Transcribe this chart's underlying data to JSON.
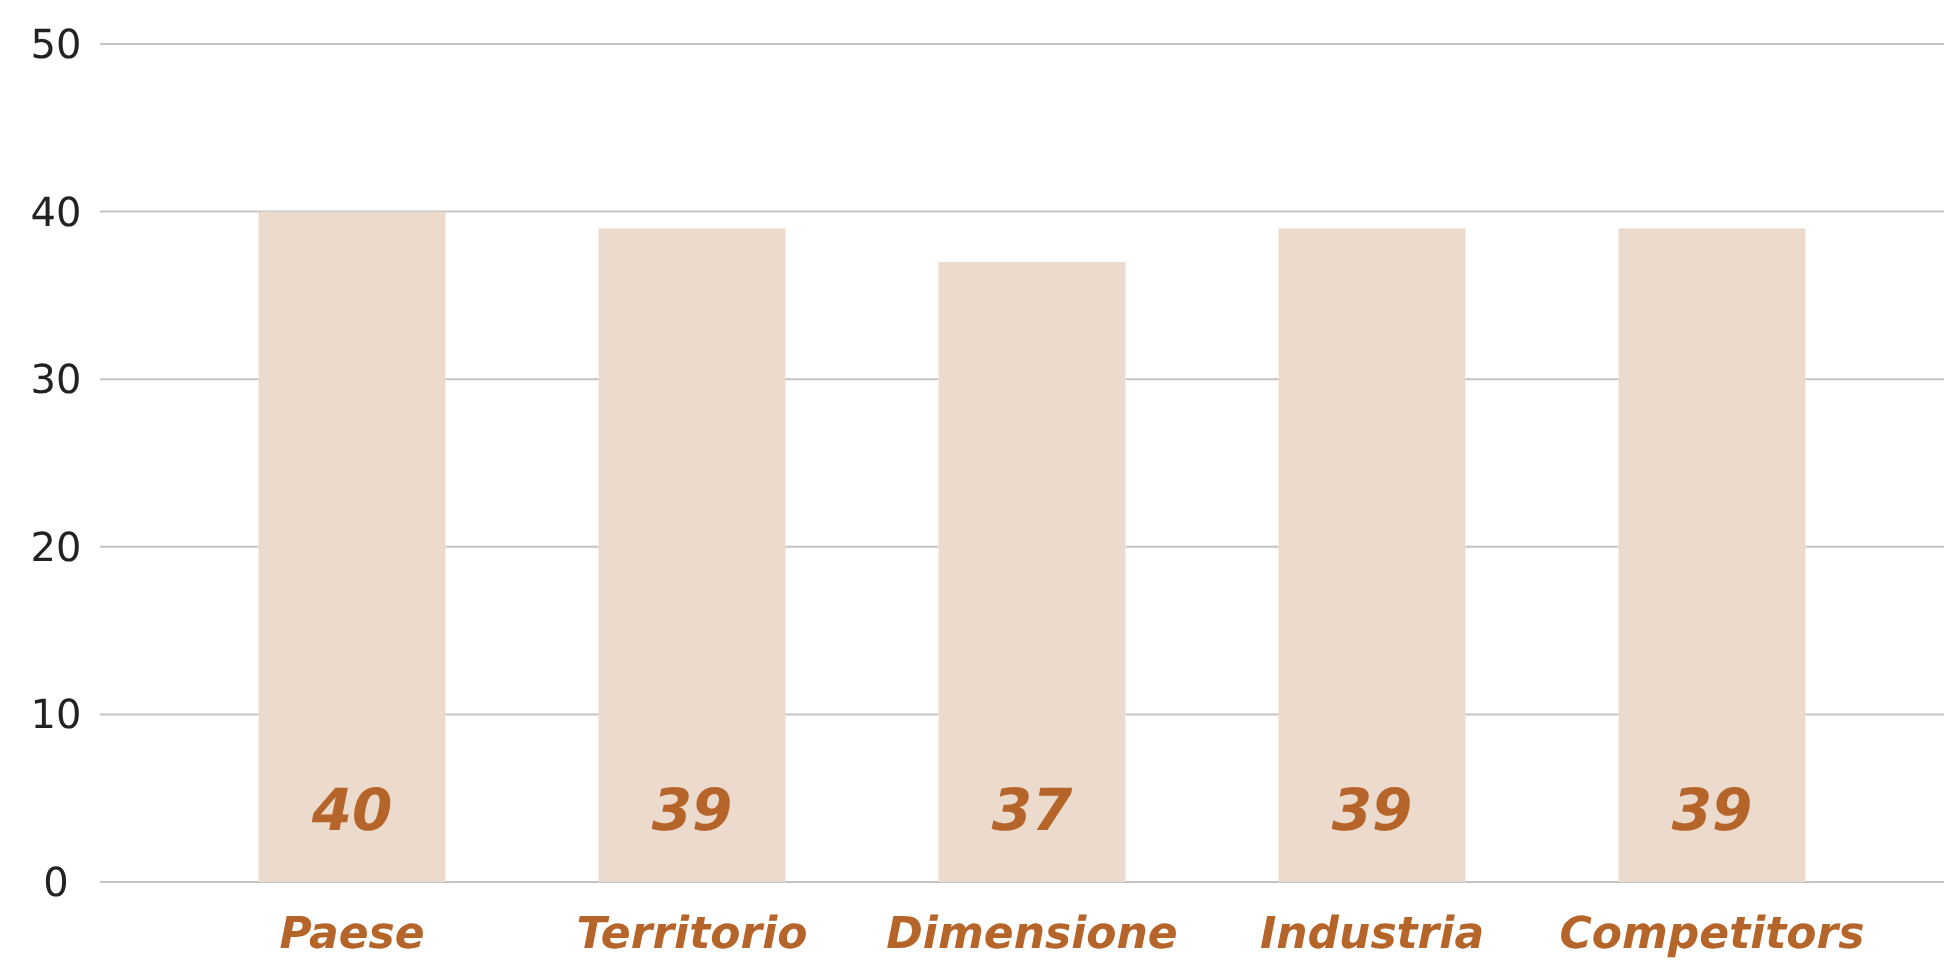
{
  "chart_data": {
    "type": "bar",
    "categories": [
      "Paese",
      "Territorio",
      "Dimensione",
      "Industria",
      "Competitors"
    ],
    "values": [
      40,
      39,
      37,
      39,
      39
    ],
    "color": "#ecdacd",
    "ylim": [
      0,
      50
    ],
    "yticks": [
      0,
      10,
      20,
      30,
      40,
      50
    ],
    "grid": "y",
    "data_labels": true
  }
}
